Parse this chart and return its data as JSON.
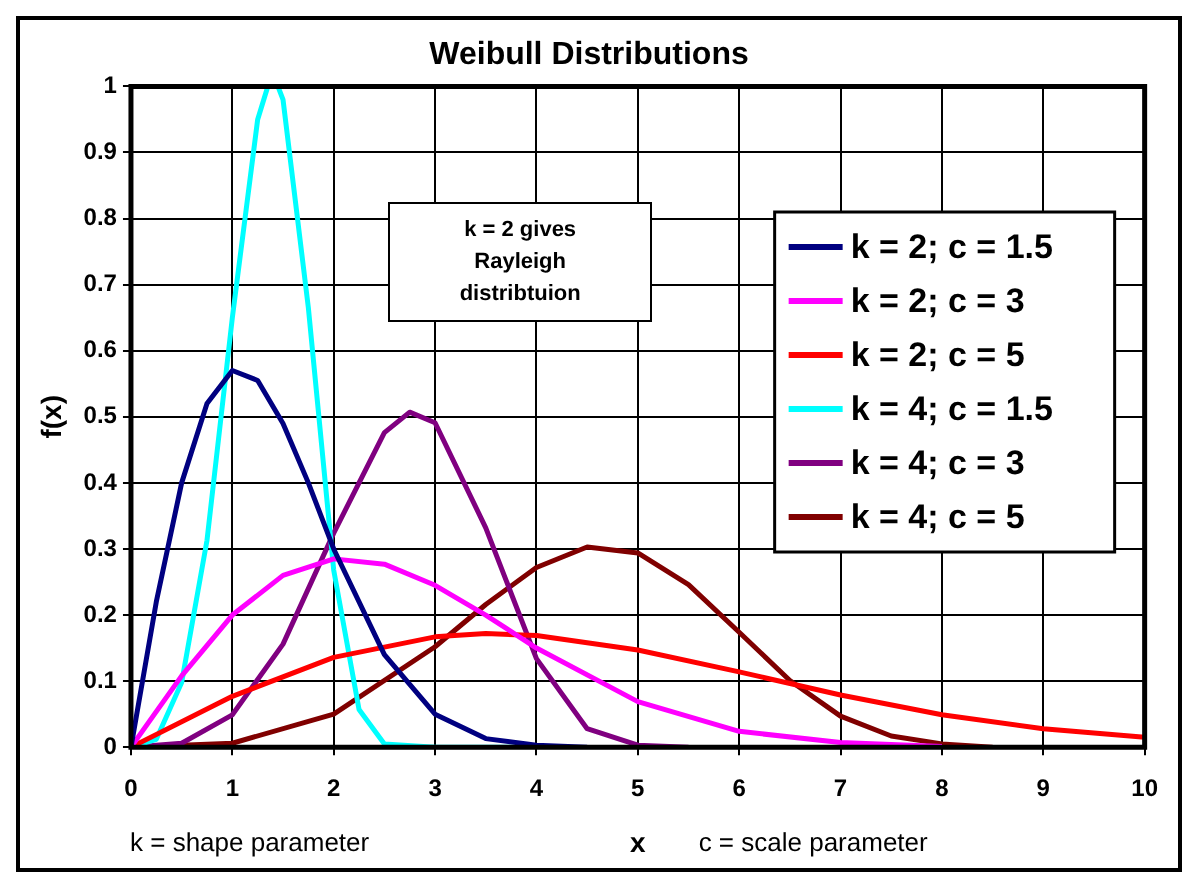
{
  "chart_data": {
    "type": "line",
    "title": "Weibull Distributions",
    "xlabel": "x",
    "ylabel": "f(x)",
    "annotations": [
      "k = 2 gives Rayleigh distribtuion",
      "k = shape parameter",
      "c = scale parameter"
    ],
    "xlim": [
      0,
      10
    ],
    "xticks": [
      0,
      1,
      2,
      3,
      4,
      5,
      6,
      7,
      8,
      9,
      10
    ],
    "ylim": [
      0,
      1
    ],
    "yticks": [
      0,
      0.1,
      0.2,
      0.3,
      0.4,
      0.5,
      0.6,
      0.7,
      0.8,
      0.9,
      1
    ],
    "grid": true,
    "legend": "top right",
    "marker": "none",
    "line_style": "solid",
    "series": [
      {
        "name": "k = 2; c = 1.5",
        "color": "#000080",
        "x": [
          0,
          0.25,
          0.5,
          0.75,
          1,
          1.25,
          1.5,
          1.75,
          2,
          2.5,
          3,
          3.5,
          4,
          4.5
        ],
        "values": [
          0,
          0.22,
          0.4,
          0.52,
          0.57,
          0.555,
          0.49,
          0.4,
          0.3,
          0.14,
          0.05,
          0.013,
          0.003,
          0
        ]
      },
      {
        "name": "k = 2; c = 3",
        "color": "#ff00ff",
        "x": [
          0,
          0.5,
          1,
          1.5,
          2,
          2.5,
          3,
          3.5,
          4,
          5,
          6,
          7,
          8
        ],
        "values": [
          0,
          0.108,
          0.2,
          0.26,
          0.285,
          0.277,
          0.245,
          0.2,
          0.15,
          0.069,
          0.024,
          0.007,
          0.001
        ]
      },
      {
        "name": "k = 2; c = 5",
        "color": "#ff0000",
        "x": [
          0,
          1,
          2,
          3,
          3.5,
          4,
          5,
          6,
          7,
          8,
          9,
          10
        ],
        "values": [
          0,
          0.077,
          0.136,
          0.167,
          0.172,
          0.169,
          0.147,
          0.114,
          0.079,
          0.049,
          0.028,
          0.015
        ]
      },
      {
        "name": "k = 4; c = 1.5",
        "color": "#00ffff",
        "x": [
          0,
          0.25,
          0.5,
          0.75,
          1,
          1.25,
          1.35,
          1.45,
          1.5,
          1.75,
          2,
          2.25,
          2.5,
          3,
          4
        ],
        "values": [
          0,
          0.012,
          0.098,
          0.313,
          0.65,
          0.95,
          1,
          1,
          0.98,
          0.665,
          0.268,
          0.057,
          0.005,
          0,
          0
        ]
      },
      {
        "name": "k = 4; c = 3",
        "color": "#800080",
        "x": [
          0,
          0.5,
          1,
          1.5,
          2,
          2.5,
          2.75,
          3,
          3.5,
          4,
          4.5,
          5,
          5.5
        ],
        "values": [
          0,
          0.006,
          0.049,
          0.156,
          0.324,
          0.476,
          0.507,
          0.491,
          0.332,
          0.134,
          0.028,
          0.003,
          0
        ]
      },
      {
        "name": "k = 4; c = 5",
        "color": "#800000",
        "x": [
          0,
          1,
          2,
          3,
          3.5,
          4,
          4.5,
          5,
          5.5,
          6,
          6.5,
          7,
          7.5,
          8,
          8.5
        ],
        "values": [
          0,
          0.006,
          0.05,
          0.152,
          0.216,
          0.272,
          0.303,
          0.294,
          0.246,
          0.174,
          0.101,
          0.047,
          0.017,
          0.005,
          0
        ]
      }
    ]
  }
}
